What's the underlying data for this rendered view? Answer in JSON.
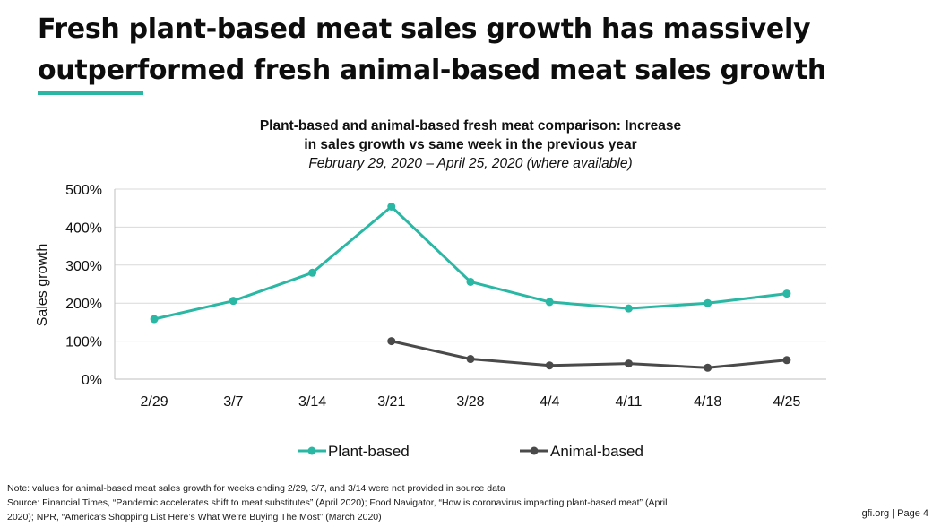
{
  "slide": {
    "headline_line1": "Fresh plant-based meat sales growth has massively",
    "headline_line2": "outperformed fresh animal-based meat sales growth",
    "accent_color": "#2ab7a4",
    "notes": [
      "Note: values for animal-based meat sales growth for weeks ending 2/29, 3/7, and 3/14 were not provided in source data",
      "Source: Financial Times, “Pandemic accelerates shift to meat substitutes” (April 2020);  Food Navigator, “How is coronavirus impacting plant-based meat” (April",
      "2020); NPR, “America’s Shopping List Here’s What We’re Buying The Most” (March 2020)"
    ],
    "page_label": "gfi.org | Page 4"
  },
  "chart_data": {
    "type": "line",
    "title_line1": "Plant-based and animal-based fresh meat comparison: Increase",
    "title_line2": "in sales growth vs same week in the previous year",
    "subtitle": "February 29, 2020 – April 25, 2020 (where available)",
    "xlabel": "",
    "ylabel": "Sales growth",
    "categories": [
      "2/29",
      "3/7",
      "3/14",
      "3/21",
      "3/28",
      "4/4",
      "4/11",
      "4/18",
      "4/25"
    ],
    "ylim": [
      0,
      500
    ],
    "yticks": [
      0,
      100,
      200,
      300,
      400,
      500
    ],
    "ytick_labels": [
      "0%",
      "100%",
      "200%",
      "300%",
      "400%",
      "500%"
    ],
    "grid": true,
    "legend_position": "bottom",
    "series": [
      {
        "name": "Plant-based",
        "color": "#2ab7a4",
        "values": [
          158,
          206,
          280,
          454,
          256,
          203,
          186,
          200,
          225
        ]
      },
      {
        "name": "Animal-based",
        "color": "#4a4a4a",
        "values": [
          null,
          null,
          null,
          100,
          53,
          36,
          41,
          30,
          50
        ]
      }
    ]
  }
}
